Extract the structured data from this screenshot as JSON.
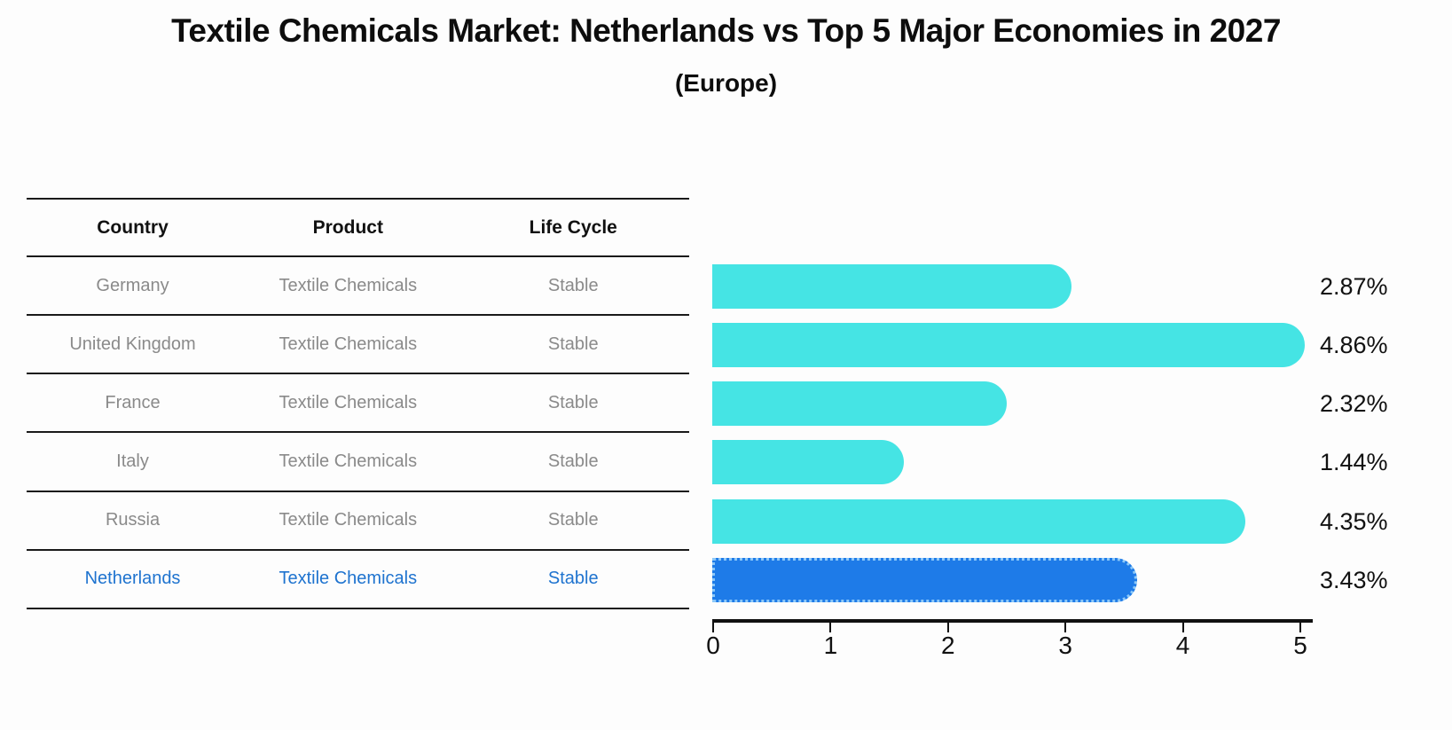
{
  "header": {
    "title": "Textile Chemicals Market: Netherlands vs Top 5 Major Economies in 2027",
    "subtitle": "(Europe)"
  },
  "table": {
    "headers": [
      "Country",
      "Product",
      "Life Cycle"
    ],
    "rows": [
      {
        "country": "Germany",
        "product": "Textile Chemicals",
        "life_cycle": "Stable",
        "highlight": false
      },
      {
        "country": "United Kingdom",
        "product": "Textile Chemicals",
        "life_cycle": "Stable",
        "highlight": false
      },
      {
        "country": "France",
        "product": "Textile Chemicals",
        "life_cycle": "Stable",
        "highlight": false
      },
      {
        "country": "Italy",
        "product": "Textile Chemicals",
        "life_cycle": "Stable",
        "highlight": false
      },
      {
        "country": "Russia",
        "product": "Textile Chemicals",
        "life_cycle": "Stable",
        "highlight": false
      },
      {
        "country": "Netherlands",
        "product": "Textile Chemicals",
        "life_cycle": "Stable",
        "highlight": true
      }
    ]
  },
  "chart_data": {
    "type": "bar",
    "orientation": "horizontal",
    "title": "Textile Chemicals Market: Netherlands vs Top 5 Major Economies in 2027",
    "subtitle": "(Europe)",
    "categories": [
      "Germany",
      "United Kingdom",
      "France",
      "Italy",
      "Russia",
      "Netherlands"
    ],
    "values": [
      2.87,
      4.86,
      2.32,
      1.44,
      4.35,
      3.43
    ],
    "value_labels": [
      "2.87%",
      "4.86%",
      "2.32%",
      "1.44%",
      "4.35%",
      "3.43%"
    ],
    "xlim": [
      0,
      5
    ],
    "xticks": [
      0,
      1,
      2,
      3,
      4,
      5
    ],
    "grid": false,
    "legend": "none",
    "highlight_category": "Netherlands",
    "colors": {
      "bar": "#45e4e4",
      "highlight_bar": "#1e7be8",
      "highlight_bar_border": "#8cc8f8",
      "highlight_text": "#1e73cf",
      "table_text": "#8a8a8a",
      "axis": "#111111"
    }
  }
}
